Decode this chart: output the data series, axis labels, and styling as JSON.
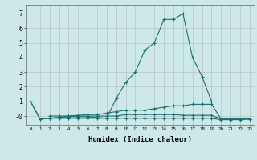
{
  "xlabel": "Humidex (Indice chaleur)",
  "line_color": "#1a7070",
  "bg_color": "#cce8e8",
  "grid_color": "#b8b8b8",
  "ylim": [
    -0.6,
    7.6
  ],
  "yticks": [
    0,
    1,
    2,
    3,
    4,
    5,
    6,
    7
  ],
  "ytick_labels": [
    "-0",
    "1",
    "2",
    "3",
    "4",
    "5",
    "6",
    "7"
  ],
  "xlim": [
    -0.5,
    23.5
  ],
  "xtick_labels": [
    "0",
    "1",
    "2",
    "3",
    "4",
    "5",
    "6",
    "7",
    "8",
    "9",
    "10",
    "11",
    "12",
    "13",
    "14",
    "15",
    "16",
    "17",
    "18",
    "19",
    "20",
    "21",
    "22",
    "23"
  ],
  "line1_x": [
    0,
    1,
    2,
    3,
    4,
    5,
    6,
    7,
    8,
    9,
    10,
    11,
    12,
    13,
    14,
    15,
    16,
    17,
    18,
    19
  ],
  "line1_y": [
    1.0,
    -0.2,
    -0.15,
    -0.1,
    -0.05,
    -0.05,
    -0.05,
    -0.1,
    -0.15,
    1.2,
    2.3,
    3.0,
    4.5,
    5.0,
    6.6,
    6.6,
    7.0,
    4.0,
    2.7,
    1.0
  ],
  "line2_x": [
    0,
    1,
    2,
    3,
    4,
    5,
    6,
    7,
    8,
    9,
    10,
    11,
    12,
    13,
    14,
    15,
    16,
    17,
    18,
    19,
    20,
    21,
    22,
    23
  ],
  "line2_y": [
    1.0,
    -0.2,
    -0.15,
    -0.1,
    0.0,
    0.05,
    0.1,
    0.1,
    0.2,
    0.3,
    0.4,
    0.4,
    0.4,
    0.5,
    0.6,
    0.7,
    0.7,
    0.8,
    0.8,
    0.8,
    -0.2,
    -0.2,
    -0.2,
    -0.2
  ],
  "line3_x": [
    2,
    3,
    4,
    5,
    6,
    7,
    8,
    9,
    10,
    11,
    12,
    13,
    14,
    15,
    16,
    17,
    18,
    19,
    20,
    21,
    22,
    23
  ],
  "line3_y": [
    0.0,
    0.0,
    0.0,
    0.0,
    0.0,
    0.0,
    0.0,
    0.0,
    0.1,
    0.1,
    0.1,
    0.1,
    0.1,
    0.1,
    0.05,
    0.05,
    0.05,
    0.05,
    -0.2,
    -0.2,
    -0.2,
    -0.2
  ],
  "line4_x": [
    2,
    3,
    4,
    5,
    6,
    7,
    8,
    9,
    10,
    11,
    12,
    13,
    14,
    15,
    16,
    17,
    18,
    19,
    20,
    21,
    22,
    23
  ],
  "line4_y": [
    -0.15,
    -0.15,
    -0.15,
    -0.15,
    -0.15,
    -0.15,
    -0.15,
    -0.15,
    -0.15,
    -0.15,
    -0.15,
    -0.15,
    -0.15,
    -0.15,
    -0.15,
    -0.15,
    -0.15,
    -0.15,
    -0.25,
    -0.25,
    -0.25,
    -0.2
  ]
}
